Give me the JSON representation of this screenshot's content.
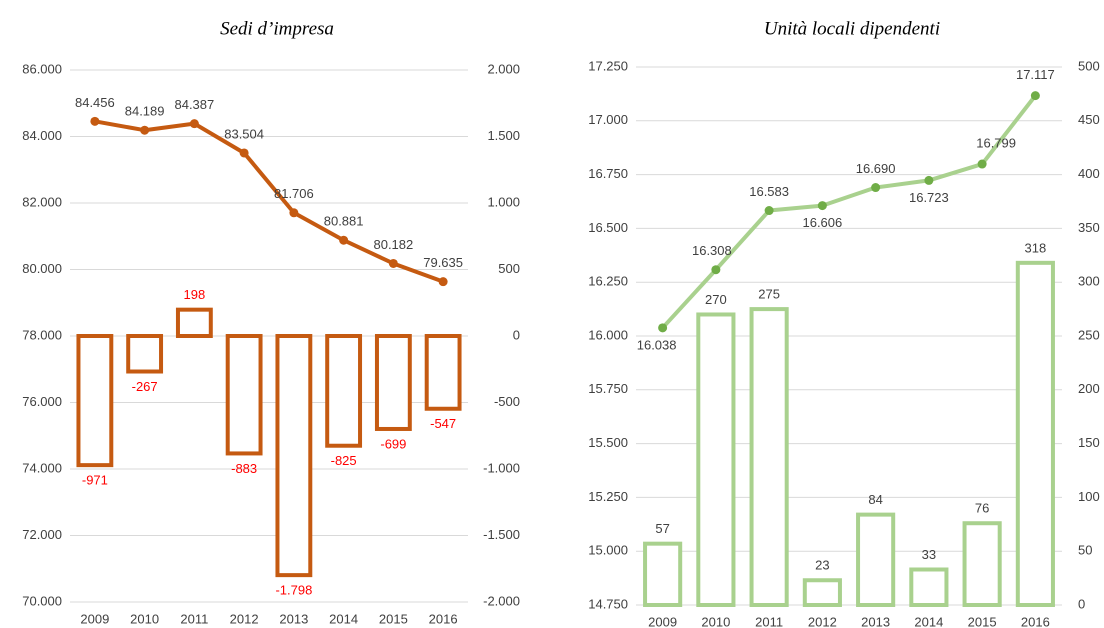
{
  "chart_data": [
    {
      "type": "combo",
      "title": "Sedi d’impresa",
      "categories": [
        "2009",
        "2010",
        "2011",
        "2012",
        "2013",
        "2014",
        "2015",
        "2016"
      ],
      "ylim": [
        70000,
        86000
      ],
      "yticks": [
        {
          "value": 70000,
          "label": "70.000"
        },
        {
          "value": 72000,
          "label": "72.000"
        },
        {
          "value": 74000,
          "label": "74.000"
        },
        {
          "value": 76000,
          "label": "76.000"
        },
        {
          "value": 78000,
          "label": "78.000"
        },
        {
          "value": 80000,
          "label": "80.000"
        },
        {
          "value": 82000,
          "label": "82.000"
        },
        {
          "value": 84000,
          "label": "84.000"
        },
        {
          "value": 86000,
          "label": "86.000"
        }
      ],
      "y2lim": [
        -2000,
        2000
      ],
      "y2ticks": [
        {
          "value": -2000,
          "label": "-2.000"
        },
        {
          "value": -1500,
          "label": "-1.500"
        },
        {
          "value": -1000,
          "label": "-1.000"
        },
        {
          "value": -500,
          "label": "-500"
        },
        {
          "value": 0,
          "label": "0"
        },
        {
          "value": 500,
          "label": "500"
        },
        {
          "value": 1000,
          "label": "1.000"
        },
        {
          "value": 1500,
          "label": "1.500"
        },
        {
          "value": 2000,
          "label": "2.000"
        }
      ],
      "grid": true,
      "series": [
        {
          "type": "bar",
          "axis": "y2",
          "color": "#c55a11",
          "label_color": "#ff0000",
          "values": [
            -971,
            -267,
            198,
            -883,
            -1798,
            -825,
            -699,
            -547
          ],
          "value_labels": [
            "-971",
            "-267",
            "198",
            "-883",
            "-1.798",
            "-825",
            "-699",
            "-547"
          ]
        },
        {
          "type": "line",
          "axis": "y",
          "color": "#c55a11",
          "values": [
            84456,
            84189,
            84387,
            83504,
            81706,
            80881,
            80182,
            79635
          ],
          "value_labels": [
            "84.456",
            "84.189",
            "84.387",
            "83.504",
            "81.706",
            "80.881",
            "80.182",
            "79.635"
          ]
        }
      ]
    },
    {
      "type": "combo",
      "title": "Unità locali dipendenti",
      "categories": [
        "2009",
        "2010",
        "2011",
        "2012",
        "2013",
        "2014",
        "2015",
        "2016"
      ],
      "ylim": [
        14750,
        17250
      ],
      "yticks": [
        {
          "value": 14750,
          "label": "14.750"
        },
        {
          "value": 15000,
          "label": "15.000"
        },
        {
          "value": 15250,
          "label": "15.250"
        },
        {
          "value": 15500,
          "label": "15.500"
        },
        {
          "value": 15750,
          "label": "15.750"
        },
        {
          "value": 16000,
          "label": "16.000"
        },
        {
          "value": 16250,
          "label": "16.250"
        },
        {
          "value": 16500,
          "label": "16.500"
        },
        {
          "value": 16750,
          "label": "16.750"
        },
        {
          "value": 17000,
          "label": "17.000"
        },
        {
          "value": 17250,
          "label": "17.250"
        }
      ],
      "y2lim": [
        0,
        500
      ],
      "y2ticks": [
        0,
        50,
        100,
        150,
        200,
        250,
        300,
        350,
        400,
        450,
        500
      ],
      "grid": true,
      "series": [
        {
          "type": "bar",
          "axis": "y2",
          "color": "#a9d18e",
          "label_color": "#404040",
          "values": [
            57,
            270,
            275,
            23,
            84,
            33,
            76,
            318
          ]
        },
        {
          "type": "line",
          "axis": "y",
          "color": "#a9d18e",
          "marker_color": "#70ad47",
          "values": [
            16038,
            16308,
            16583,
            16606,
            16690,
            16723,
            16799,
            17117
          ],
          "value_labels": [
            "16.038",
            "16.308",
            "16.583",
            "16.606",
            "16.690",
            "16.723",
            "16.799",
            "17.117"
          ]
        }
      ]
    }
  ]
}
